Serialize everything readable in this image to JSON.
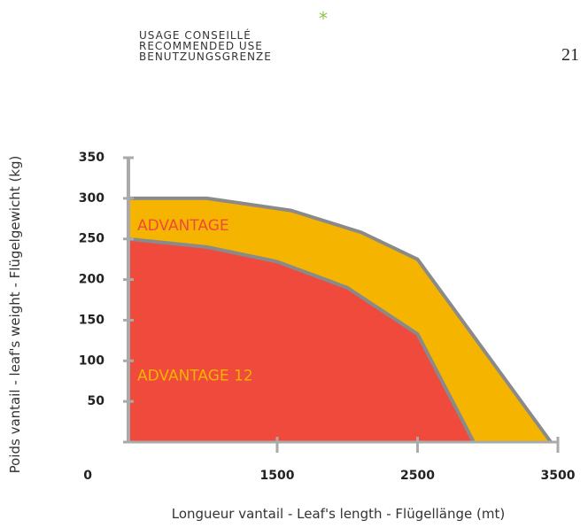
{
  "header": {
    "lines": [
      "USAGE CONSEILLÉ",
      "RECOMMENDED USE",
      "BENUTZUNGSGRENZE"
    ],
    "mark": "*",
    "page": "21"
  },
  "chart_data": {
    "type": "area",
    "x_label": "Longueur vantail - Leaf's length - Flügellänge (mt)",
    "y_label": "Poids vantail - leaf's weight - Flügelgewicht (kg)",
    "series": [
      {
        "name": "ADVANTAGE",
        "color": "#f5b400",
        "x": [
          440,
          1000,
          1600,
          2100,
          2500,
          3450
        ],
        "values": [
          300,
          300,
          285,
          258,
          225,
          0
        ]
      },
      {
        "name": "ADVANTAGE 12",
        "color": "#f04a3c",
        "x": [
          440,
          1000,
          1500,
          2000,
          2500,
          2900
        ],
        "values": [
          250,
          240,
          222,
          190,
          133,
          0
        ]
      }
    ],
    "xlim": [
      440,
      3500
    ],
    "xticks": [
      1500,
      2500,
      3500
    ],
    "ylim": [
      0,
      350
    ],
    "yticks": [
      0,
      50,
      100,
      150,
      200,
      250,
      300,
      350
    ]
  }
}
